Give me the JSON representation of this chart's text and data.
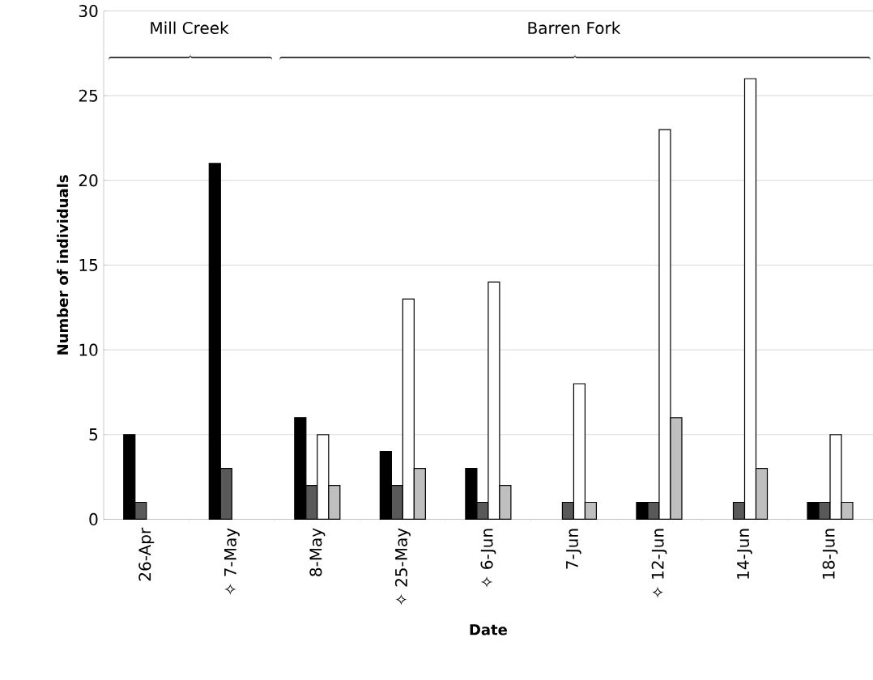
{
  "chart_data": {
    "type": "bar",
    "categories": [
      "26-Apr",
      "✧ 7-May",
      "8-May",
      "✧ 25-May",
      "✧ 6-Jun",
      "7-Jun",
      "✧ 12-Jun",
      "14-Jun",
      "18-Jun"
    ],
    "series": [
      {
        "color": "#000000",
        "values": [
          5,
          21,
          6,
          4,
          3,
          null,
          1,
          null,
          1
        ]
      },
      {
        "color": "#595959",
        "values": [
          1,
          3,
          2,
          2,
          1,
          1,
          1,
          1,
          1
        ]
      },
      {
        "color": "#ffffff",
        "values": [
          null,
          null,
          5,
          13,
          14,
          8,
          23,
          26,
          5
        ]
      },
      {
        "color": "#bfbfbf",
        "values": [
          null,
          null,
          2,
          3,
          2,
          1,
          6,
          3,
          1
        ]
      }
    ],
    "xlabel": "Date",
    "ylabel": "Number of individuals",
    "ylim": [
      0,
      30
    ],
    "yticks": [
      0,
      5,
      10,
      15,
      20,
      25,
      30
    ],
    "grid": "y",
    "annotations": [
      "Mill Creek",
      "Barren Fork"
    ]
  }
}
